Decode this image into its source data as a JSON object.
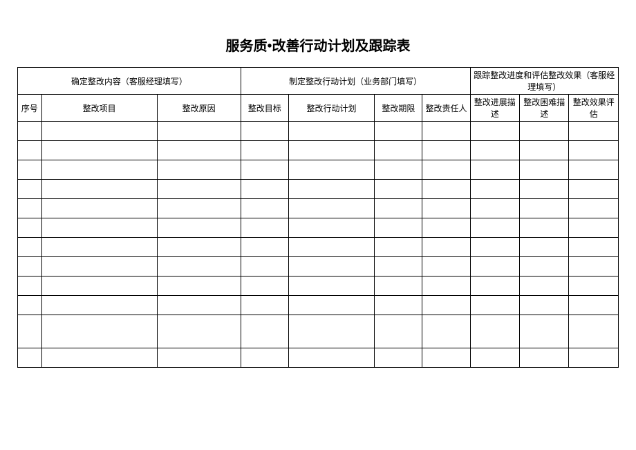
{
  "title": "服务质•改善行动计划及跟踪表",
  "groupHeaders": {
    "g1": "确定整改内容（客服经理填写）",
    "g2": "制定整改行动计划（业务部门填写）",
    "g3": "跟踪整改进度和评估整改效果（客服经理填写）"
  },
  "columns": {
    "seq": "序号",
    "item": "整改项目",
    "reason": "整改原因",
    "goal": "整改目标",
    "plan": "整改行动计划",
    "period": "整改期限",
    "owner": "整改责任人",
    "progress": "整改进展描述",
    "difficulty": "整改困难描述",
    "effect": "整改效果评估"
  },
  "table": {
    "num_data_rows": 12,
    "border_color": "#000000",
    "background_color": "#ffffff",
    "font_size_header": 12,
    "font_size_title": 20,
    "title_font_weight": "bold",
    "col_widths": {
      "seq": 30,
      "item": 145,
      "reason": 105,
      "goal": 60,
      "plan": 108,
      "period": 60,
      "owner": 60,
      "progress": 62,
      "difficulty": 62,
      "effect": 62
    }
  }
}
